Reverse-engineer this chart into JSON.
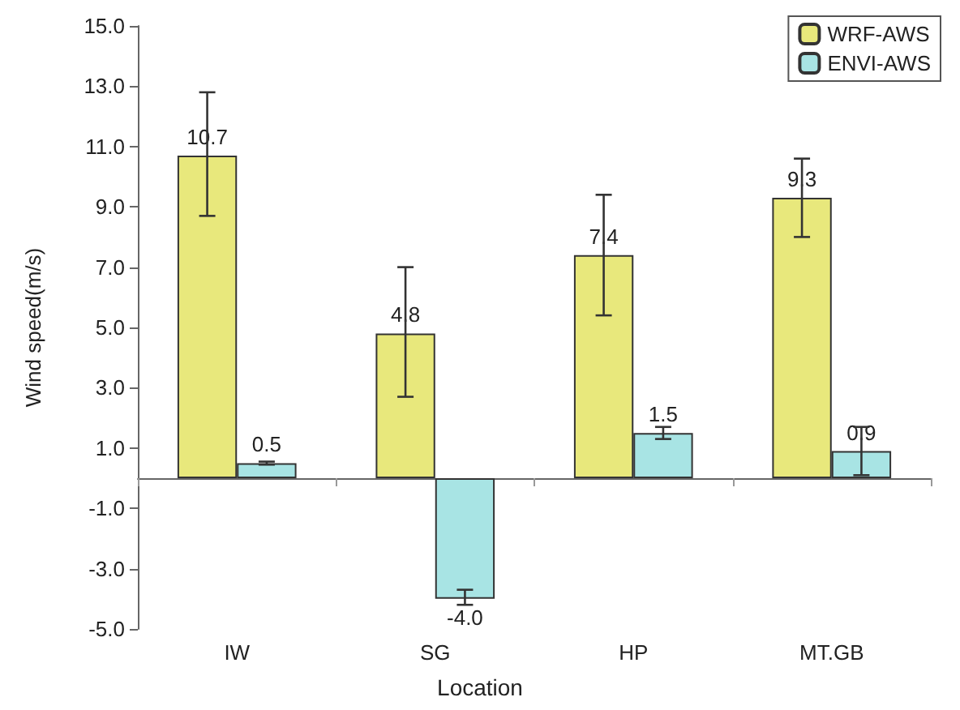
{
  "chart_data": {
    "type": "bar",
    "xlabel": "Location",
    "ylabel": "Wind speed(m/s)",
    "categories": [
      "IW",
      "SG",
      "HP",
      "MT.GB"
    ],
    "series": [
      {
        "name": "WRF-AWS",
        "color": "#e8e87c",
        "values": [
          10.7,
          4.8,
          7.4,
          9.3
        ],
        "value_labels": [
          "10.7",
          "4.8",
          "7.4",
          "9.3"
        ],
        "errors": [
          [
            8.7,
            12.8
          ],
          [
            2.7,
            7.0
          ],
          [
            5.4,
            9.4
          ],
          [
            8.0,
            10.6
          ]
        ]
      },
      {
        "name": "ENVI-AWS",
        "color": "#a8e4e4",
        "values": [
          0.5,
          -4.0,
          1.5,
          0.9
        ],
        "value_labels": [
          "0.5",
          "-4.0",
          "1.5",
          "0.9"
        ],
        "errors": [
          [
            0.45,
            0.55
          ],
          [
            -4.2,
            -3.7
          ],
          [
            1.3,
            1.7
          ],
          [
            0.1,
            1.7
          ]
        ]
      }
    ],
    "ylim": [
      -5,
      15
    ],
    "yticks": [
      {
        "value": -5,
        "label": "-5.0"
      },
      {
        "value": -3,
        "label": "-3.0"
      },
      {
        "value": -1,
        "label": "-1.0"
      },
      {
        "value": 1,
        "label": "1.0"
      },
      {
        "value": 3,
        "label": "3.0"
      },
      {
        "value": 5,
        "label": "5.0"
      },
      {
        "value": 7,
        "label": "7.0"
      },
      {
        "value": 9,
        "label": "9.0"
      },
      {
        "value": 11,
        "label": "11.0"
      },
      {
        "value": 13,
        "label": "13.0"
      },
      {
        "value": 15,
        "label": "15.0"
      }
    ],
    "grid": false,
    "legend": "top right"
  }
}
